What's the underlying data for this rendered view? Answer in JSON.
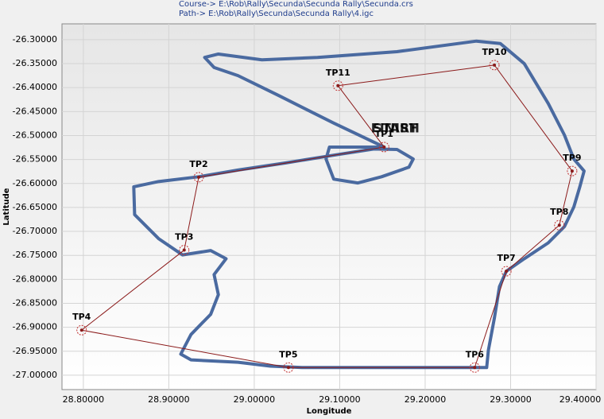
{
  "chart_data": {
    "type": "line",
    "header": [
      "Course-> E:\\Rob\\Rally\\Secunda\\Secunda Rally\\Secunda.crs",
      "Path-> E:\\Rob\\Rally\\Secunda\\Secunda Rally\\4.igc"
    ],
    "xlabel": "Longitude",
    "ylabel": "Latitude",
    "xlim": [
      28.775,
      29.4
    ],
    "ylim": [
      -27.03,
      -26.267
    ],
    "xticks": [
      {
        "value": 28.8,
        "label": "28.80000"
      },
      {
        "value": 28.9,
        "label": "28.90000"
      },
      {
        "value": 29.0,
        "label": "29.00000"
      },
      {
        "value": 29.1,
        "label": "29.10000"
      },
      {
        "value": 29.2,
        "label": "29.20000"
      },
      {
        "value": 29.3,
        "label": "29.30000"
      },
      {
        "value": 29.4,
        "label": "29.40000"
      }
    ],
    "yticks": [
      {
        "value": -26.3,
        "label": "-26.30000"
      },
      {
        "value": -26.35,
        "label": "-26.35000"
      },
      {
        "value": -26.4,
        "label": "-26.40000"
      },
      {
        "value": -26.45,
        "label": "-26.45000"
      },
      {
        "value": -26.5,
        "label": "-26.50000"
      },
      {
        "value": -26.55,
        "label": "-26.55000"
      },
      {
        "value": -26.6,
        "label": "-26.60000"
      },
      {
        "value": -26.65,
        "label": "-26.65000"
      },
      {
        "value": -26.7,
        "label": "-26.70000"
      },
      {
        "value": -26.75,
        "label": "-26.75000"
      },
      {
        "value": -26.8,
        "label": "-26.80000"
      },
      {
        "value": -26.85,
        "label": "-26.85000"
      },
      {
        "value": -26.9,
        "label": "-26.90000"
      },
      {
        "value": -26.95,
        "label": "-26.95000"
      },
      {
        "value": -27.0,
        "label": "-27.00000"
      }
    ],
    "grid": true,
    "series": [
      {
        "color": "#4a6aa0",
        "x": [
          29.152,
          29.093,
          29.028,
          28.981,
          28.953,
          28.942,
          28.958,
          29.009,
          29.074,
          29.167,
          29.26,
          29.288,
          29.316,
          29.344,
          29.363,
          29.374,
          29.386,
          29.381,
          29.374,
          29.363,
          29.344,
          29.316,
          29.295,
          29.287,
          29.281,
          29.274,
          29.272,
          29.223,
          29.121,
          29.056,
          29.019,
          28.981,
          28.926,
          28.914,
          28.926,
          28.949,
          28.958,
          28.953,
          28.967,
          28.949,
          28.916,
          28.888,
          28.86,
          28.859,
          28.888,
          28.935,
          28.981,
          29.037,
          29.093,
          29.14,
          29.167,
          29.186,
          29.181,
          29.149,
          29.121,
          29.093,
          29.084,
          29.088,
          29.152
        ],
        "values": [
          -26.524,
          -26.474,
          -26.416,
          -26.375,
          -26.358,
          -26.337,
          -26.33,
          -26.342,
          -26.337,
          -26.325,
          -26.303,
          -26.308,
          -26.35,
          -26.433,
          -26.499,
          -26.549,
          -26.574,
          -26.607,
          -26.649,
          -26.69,
          -26.724,
          -26.757,
          -26.783,
          -26.815,
          -26.881,
          -26.948,
          -26.984,
          -26.984,
          -26.984,
          -26.984,
          -26.981,
          -26.973,
          -26.968,
          -26.956,
          -26.915,
          -26.873,
          -26.832,
          -26.79,
          -26.757,
          -26.74,
          -26.749,
          -26.715,
          -26.665,
          -26.607,
          -26.596,
          -26.586,
          -26.572,
          -26.557,
          -26.541,
          -26.528,
          -26.529,
          -26.549,
          -26.566,
          -26.586,
          -26.599,
          -26.591,
          -26.549,
          -26.524,
          -26.524
        ]
      },
      {
        "color": "#8b1a1a",
        "closed": true,
        "labels": [
          "TP1",
          "TP2",
          "TP3",
          "TP4",
          "TP5",
          "TP6",
          "TP7",
          "TP8",
          "TP9",
          "TP10",
          "TP11"
        ],
        "x": [
          29.152,
          28.935,
          28.918,
          28.798,
          29.04,
          29.258,
          29.295,
          29.357,
          29.372,
          29.281,
          29.098
        ],
        "values": [
          -26.524,
          -26.587,
          -26.739,
          -26.906,
          -26.984,
          -26.984,
          -26.783,
          -26.687,
          -26.574,
          -26.353,
          -26.396
        ]
      }
    ],
    "annotations": [
      {
        "text": "START",
        "color": "#1a9a1a",
        "x": 29.152,
        "y": -26.524
      },
      {
        "text": "FINISH",
        "color": "#d01010",
        "x": 29.152,
        "y": -26.524
      }
    ]
  }
}
